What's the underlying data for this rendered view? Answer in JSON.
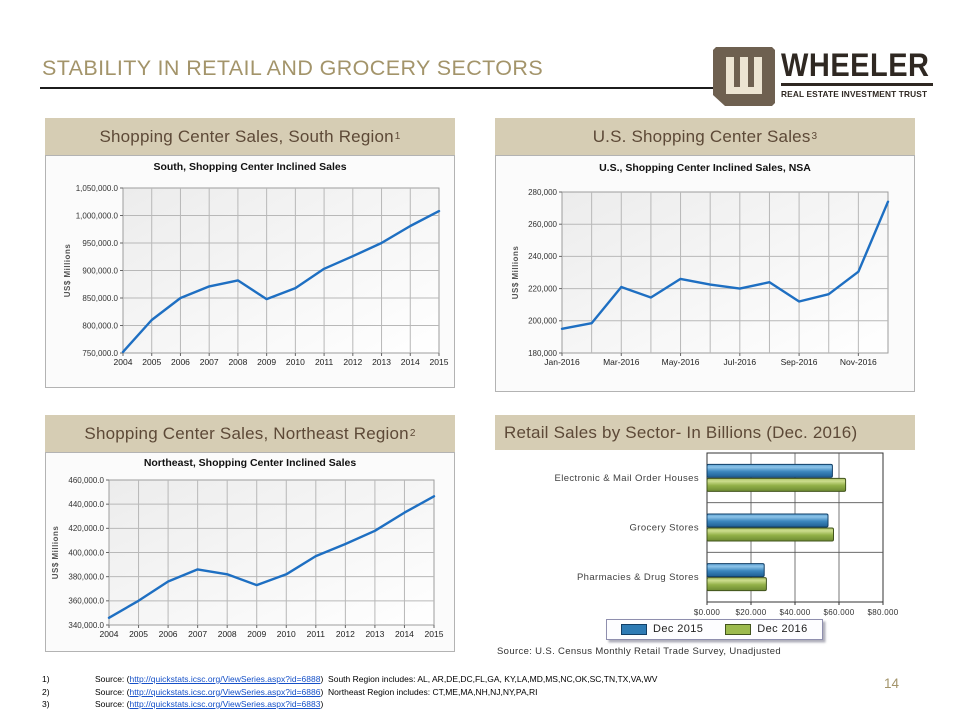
{
  "slide": {
    "title": "STABILITY IN RETAIL AND GROCERY SECTORS",
    "page_number": "14"
  },
  "logo": {
    "brand": "WHEELER",
    "tagline": "REAL ESTATE INVESTMENT TRUST",
    "monogram": "W"
  },
  "colors": {
    "accent_gold": "#a3946a",
    "header_band": "#d6cdb4",
    "header_band_text": "#5d4937",
    "line_blue": "#1e6fc2",
    "bar_blue": "#2e7bb4",
    "bar_green": "#9cba4e",
    "link_blue": "#1550c8"
  },
  "panels": [
    {
      "header": "Shopping Center Sales, South Region",
      "footnote_ref": "1"
    },
    {
      "header": "U.S. Shopping Center Sales",
      "footnote_ref": "3"
    },
    {
      "header": "Shopping Center Sales, Northeast Region",
      "footnote_ref": "2"
    },
    {
      "header": "Retail Sales by Sector- In Billions (Dec. 2016)",
      "footnote_ref": ""
    }
  ],
  "chart_data": [
    {
      "type": "line",
      "title": "South, Shopping Center Inclined Sales",
      "ylabel": "US$ Millions",
      "x": [
        "2004",
        "2005",
        "2006",
        "2007",
        "2008",
        "2009",
        "2010",
        "2011",
        "2012",
        "2013",
        "2014",
        "2015"
      ],
      "values": [
        752000,
        810000,
        850000,
        871000,
        882000,
        848000,
        868000,
        903000,
        926000,
        950000,
        981000,
        1008000
      ],
      "ylim": [
        750000,
        1050000
      ],
      "ytick_labels": [
        "750,000.0",
        "800,000.0",
        "850,000.0",
        "900,000.0",
        "950,000.0",
        "1,000,000.0",
        "1,050,000.0"
      ],
      "xlabel_every": 1,
      "grid": true,
      "line_color": "#1e6fc2"
    },
    {
      "type": "line",
      "title": "U.S., Shopping Center Inclined Sales, NSA",
      "ylabel": "US$ Millions",
      "x": [
        "Jan-2016",
        "Feb-2016",
        "Mar-2016",
        "Apr-2016",
        "May-2016",
        "Jun-2016",
        "Jul-2016",
        "Aug-2016",
        "Sep-2016",
        "Oct-2016",
        "Nov-2016",
        "Dec-2016"
      ],
      "values": [
        195000,
        198500,
        221000,
        214500,
        226000,
        222500,
        220000,
        224000,
        212000,
        216500,
        230500,
        274000
      ],
      "ylim": [
        180000,
        280000
      ],
      "ytick_labels": [
        "180,000",
        "200,000",
        "220,000",
        "240,000",
        "260,000",
        "280,000"
      ],
      "xlabel_every": 2,
      "grid": true,
      "line_color": "#1e6fc2"
    },
    {
      "type": "line",
      "title": "Northeast, Shopping Center Inclined Sales",
      "ylabel": "US$ Millions",
      "x": [
        "2004",
        "2005",
        "2006",
        "2007",
        "2008",
        "2009",
        "2010",
        "2011",
        "2012",
        "2013",
        "2014",
        "2015"
      ],
      "values": [
        346000,
        360000,
        376000,
        386000,
        382000,
        373000,
        382000,
        397000,
        407000,
        418000,
        433000,
        446500
      ],
      "ylim": [
        340000,
        460000
      ],
      "ytick_labels": [
        "340,000.0",
        "360,000.0",
        "380,000.0",
        "400,000.0",
        "420,000.0",
        "440,000.0",
        "460,000.0"
      ],
      "xlabel_every": 1,
      "grid": true,
      "line_color": "#1e6fc2"
    },
    {
      "type": "bar",
      "orientation": "horizontal",
      "categories": [
        "Electronic & Mail Order Houses",
        "Grocery Stores",
        "Pharmacies & Drug Stores"
      ],
      "series": [
        {
          "name": "Dec 2015",
          "color": "#2e7bb4",
          "border": "#123f66",
          "values": [
            57,
            55,
            26
          ]
        },
        {
          "name": "Dec 2016",
          "color": "#9cba4e",
          "border": "#42541d",
          "values": [
            63,
            57.5,
            27
          ]
        }
      ],
      "xlim": [
        0,
        80
      ],
      "xtick_labels": [
        "$0.000",
        "$20.000",
        "$40.000",
        "$60.000",
        "$80.000"
      ],
      "legend_position": "bottom",
      "source": "Source: U.S. Census Monthly Retail Trade Survey, Unadjusted"
    }
  ],
  "footnotes": [
    {
      "num": "1)",
      "label": "Source: (",
      "link": "http://quickstats.icsc.org/ViewSeries.aspx?id=6888",
      "after": ")",
      "note": "South Region includes: AL, AR,DE,DC,FL,GA, KY,LA,MD,MS,NC,OK,SC,TN,TX,VA,WV"
    },
    {
      "num": "2)",
      "label": "Source: (",
      "link": "http://quickstats.icsc.org/ViewSeries.aspx?id=6886",
      "after": ")",
      "note": "Northeast Region includes: CT,ME,MA,NH,NJ,NY,PA,RI"
    },
    {
      "num": "3)",
      "label": "Source: (",
      "link": "http://quickstats.icsc.org/ViewSeries.aspx?id=6883",
      "after": ")",
      "note": ""
    }
  ]
}
